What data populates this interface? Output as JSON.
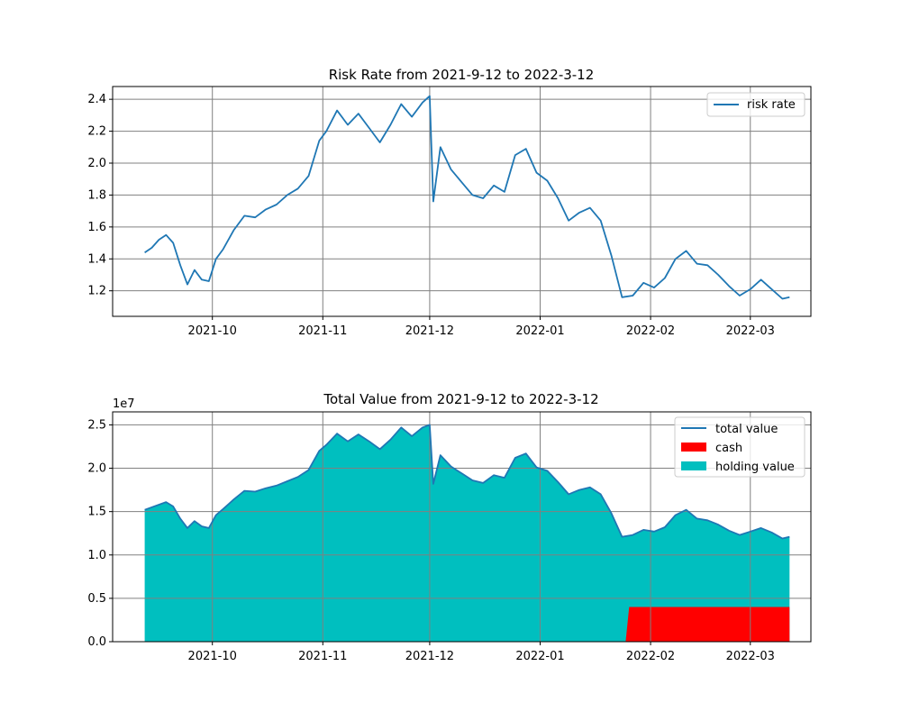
{
  "chart_data": [
    {
      "type": "line",
      "title": "Risk Rate from 2021-9-12 to 2022-3-12",
      "xlabel": "",
      "ylabel": "",
      "grid": true,
      "legend_position": "top-right",
      "xlim": [
        "2021-09-03",
        "2022-03-18"
      ],
      "ylim": [
        1.04,
        2.48
      ],
      "x_ticks": [
        "2021-10-01",
        "2021-11-01",
        "2021-12-01",
        "2022-01-01",
        "2022-02-01",
        "2022-03-01"
      ],
      "x_tick_labels": [
        "2021-10",
        "2021-11",
        "2021-12",
        "2022-01",
        "2022-02",
        "2022-03"
      ],
      "y_ticks": [
        1.2,
        1.4,
        1.6,
        1.8,
        2.0,
        2.2,
        2.4
      ],
      "y_tick_labels": [
        "1.2",
        "1.4",
        "1.6",
        "1.8",
        "2.0",
        "2.2",
        "2.4"
      ],
      "series": [
        {
          "name": "risk rate",
          "color": "#1f77b4",
          "x": [
            "2021-09-12",
            "2021-09-14",
            "2021-09-16",
            "2021-09-18",
            "2021-09-20",
            "2021-09-22",
            "2021-09-24",
            "2021-09-26",
            "2021-09-28",
            "2021-09-30",
            "2021-10-02",
            "2021-10-04",
            "2021-10-07",
            "2021-10-10",
            "2021-10-13",
            "2021-10-16",
            "2021-10-19",
            "2021-10-22",
            "2021-10-25",
            "2021-10-28",
            "2021-10-31",
            "2021-11-02",
            "2021-11-05",
            "2021-11-08",
            "2021-11-11",
            "2021-11-14",
            "2021-11-17",
            "2021-11-20",
            "2021-11-23",
            "2021-11-26",
            "2021-11-29",
            "2021-12-01",
            "2021-12-02",
            "2021-12-04",
            "2021-12-07",
            "2021-12-10",
            "2021-12-13",
            "2021-12-16",
            "2021-12-19",
            "2021-12-22",
            "2021-12-25",
            "2021-12-28",
            "2021-12-31",
            "2022-01-03",
            "2022-01-06",
            "2022-01-09",
            "2022-01-12",
            "2022-01-15",
            "2022-01-18",
            "2022-01-21",
            "2022-01-24",
            "2022-01-27",
            "2022-01-30",
            "2022-02-02",
            "2022-02-05",
            "2022-02-08",
            "2022-02-11",
            "2022-02-14",
            "2022-02-17",
            "2022-02-20",
            "2022-02-23",
            "2022-02-26",
            "2022-03-01",
            "2022-03-04",
            "2022-03-07",
            "2022-03-10",
            "2022-03-12"
          ],
          "values": [
            1.44,
            1.47,
            1.52,
            1.55,
            1.5,
            1.36,
            1.24,
            1.33,
            1.27,
            1.26,
            1.4,
            1.46,
            1.58,
            1.67,
            1.66,
            1.71,
            1.74,
            1.8,
            1.84,
            1.92,
            2.14,
            2.2,
            2.33,
            2.24,
            2.31,
            2.22,
            2.13,
            2.24,
            2.37,
            2.29,
            2.38,
            2.42,
            1.76,
            2.1,
            1.96,
            1.88,
            1.8,
            1.78,
            1.86,
            1.82,
            2.05,
            2.09,
            1.94,
            1.89,
            1.78,
            1.64,
            1.69,
            1.72,
            1.64,
            1.42,
            1.16,
            1.17,
            1.25,
            1.22,
            1.28,
            1.4,
            1.45,
            1.37,
            1.36,
            1.3,
            1.23,
            1.17,
            1.21,
            1.27,
            1.21,
            1.15,
            1.16
          ]
        }
      ]
    },
    {
      "type": "area",
      "title": "Total Value from 2021-9-12 to 2022-3-12",
      "xlabel": "",
      "ylabel": "",
      "y_scale_label": "1e7",
      "grid": true,
      "legend_position": "top-right",
      "xlim": [
        "2021-09-03",
        "2022-03-18"
      ],
      "ylim": [
        0,
        26500000
      ],
      "x_ticks": [
        "2021-10-01",
        "2021-11-01",
        "2021-12-01",
        "2022-01-01",
        "2022-02-01",
        "2022-03-01"
      ],
      "x_tick_labels": [
        "2021-10",
        "2021-11",
        "2021-12",
        "2022-01",
        "2022-02",
        "2022-03"
      ],
      "y_ticks": [
        0,
        5000000,
        10000000,
        15000000,
        20000000,
        25000000
      ],
      "y_tick_labels": [
        "0.0",
        "0.5",
        "1.0",
        "1.5",
        "2.0",
        "2.5"
      ],
      "series": [
        {
          "name": "total value",
          "kind": "line",
          "color": "#1f77b4",
          "x": [
            "2021-09-12",
            "2021-09-14",
            "2021-09-16",
            "2021-09-18",
            "2021-09-20",
            "2021-09-22",
            "2021-09-24",
            "2021-09-26",
            "2021-09-28",
            "2021-09-30",
            "2021-10-02",
            "2021-10-04",
            "2021-10-07",
            "2021-10-10",
            "2021-10-13",
            "2021-10-16",
            "2021-10-19",
            "2021-10-22",
            "2021-10-25",
            "2021-10-28",
            "2021-10-31",
            "2021-11-02",
            "2021-11-05",
            "2021-11-08",
            "2021-11-11",
            "2021-11-14",
            "2021-11-17",
            "2021-11-20",
            "2021-11-23",
            "2021-11-26",
            "2021-11-29",
            "2021-12-01",
            "2021-12-02",
            "2021-12-04",
            "2021-12-07",
            "2021-12-10",
            "2021-12-13",
            "2021-12-16",
            "2021-12-19",
            "2021-12-22",
            "2021-12-25",
            "2021-12-28",
            "2021-12-31",
            "2022-01-03",
            "2022-01-06",
            "2022-01-09",
            "2022-01-12",
            "2022-01-15",
            "2022-01-18",
            "2022-01-21",
            "2022-01-24",
            "2022-01-27",
            "2022-01-30",
            "2022-02-02",
            "2022-02-05",
            "2022-02-08",
            "2022-02-11",
            "2022-02-14",
            "2022-02-17",
            "2022-02-20",
            "2022-02-23",
            "2022-02-26",
            "2022-03-01",
            "2022-03-04",
            "2022-03-07",
            "2022-03-10",
            "2022-03-12"
          ],
          "values": [
            15200000,
            15500000,
            15800000,
            16100000,
            15600000,
            14200000,
            13100000,
            13900000,
            13300000,
            13100000,
            14600000,
            15300000,
            16400000,
            17400000,
            17300000,
            17700000,
            18000000,
            18500000,
            19000000,
            19800000,
            22000000,
            22700000,
            24000000,
            23100000,
            23900000,
            23100000,
            22200000,
            23300000,
            24700000,
            23700000,
            24700000,
            25000000,
            18200000,
            21500000,
            20200000,
            19400000,
            18600000,
            18300000,
            19200000,
            18900000,
            21200000,
            21700000,
            20100000,
            19700000,
            18400000,
            17000000,
            17500000,
            17800000,
            17000000,
            14800000,
            12100000,
            12300000,
            12900000,
            12700000,
            13200000,
            14600000,
            15200000,
            14200000,
            14000000,
            13500000,
            12800000,
            12300000,
            12700000,
            13100000,
            12600000,
            11900000,
            12100000
          ]
        },
        {
          "name": "cash",
          "kind": "area",
          "color": "#ff0000",
          "x": [
            "2021-09-12",
            "2022-01-25",
            "2022-01-26",
            "2022-03-12"
          ],
          "values": [
            0,
            0,
            4000000,
            4000000
          ]
        },
        {
          "name": "holding value",
          "kind": "area",
          "color": "#00bfbf",
          "note_same_dates_as": "total value"
        }
      ]
    }
  ]
}
